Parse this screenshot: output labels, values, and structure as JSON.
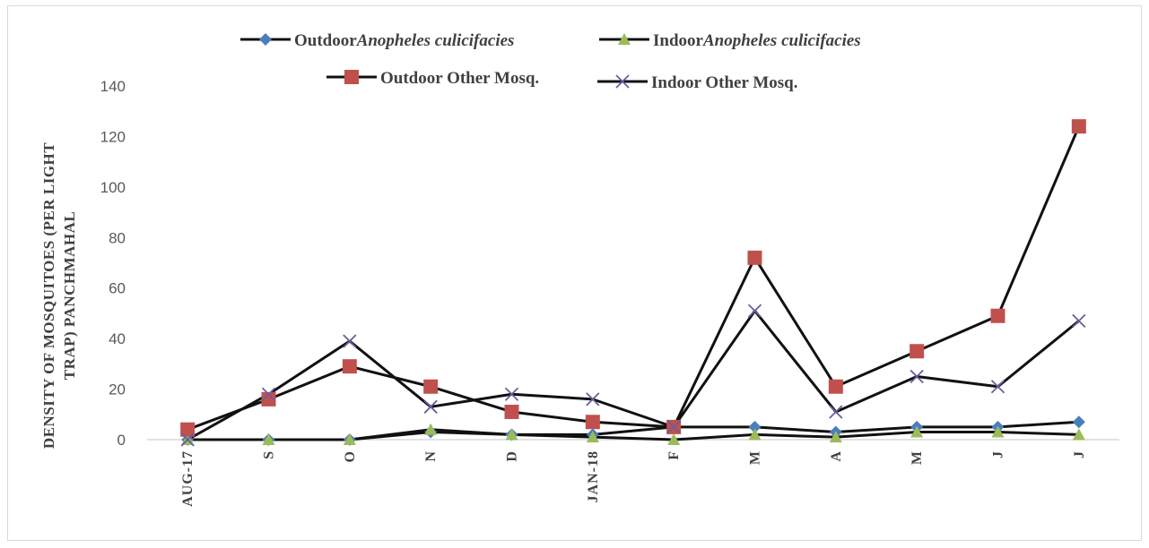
{
  "chart_data": {
    "type": "line",
    "title": "",
    "ylabel_line1": "DENSITY OF MOSQUITOES (PER LIGHT",
    "ylabel_line2": "TRAP) PANCHMAHAL",
    "xlabel": "",
    "ylim": [
      0,
      140
    ],
    "yticks": [
      0,
      20,
      40,
      60,
      80,
      100,
      120,
      140
    ],
    "categories": [
      "AUG-17",
      "S",
      "O",
      "N",
      "D",
      "JAN-18",
      "F",
      "M",
      "A",
      "M",
      "J",
      "J"
    ],
    "legend_position": "top",
    "grid": false,
    "series": [
      {
        "name": "Outdoor Anopheles culicifacies",
        "legend_plain": "Outdoor",
        "legend_italic": "Anopheles culicifacies",
        "marker": "diamond",
        "color": "#4a7ebb",
        "values": [
          0,
          0,
          0,
          3,
          2,
          2,
          5,
          5,
          3,
          5,
          5,
          7
        ]
      },
      {
        "name": "Indoor Anopheles culicifacies",
        "legend_plain": "Indoor",
        "legend_italic": "Anopheles culicifacies",
        "marker": "triangle",
        "color": "#9bbb59",
        "values": [
          0,
          0,
          0,
          4,
          2,
          1,
          0,
          2,
          1,
          3,
          3,
          2
        ]
      },
      {
        "name": "Outdoor Other Mosq.",
        "legend_plain": "Outdoor  Other Mosq.",
        "legend_italic": "",
        "marker": "square",
        "color": "#c0504d",
        "values": [
          4,
          16,
          29,
          21,
          11,
          7,
          5,
          72,
          21,
          35,
          49,
          124
        ]
      },
      {
        "name": "Indoor Other Mosq.",
        "legend_plain": "Indoor Other Mosq.",
        "legend_italic": "",
        "marker": "x",
        "color": "#6a5d9e",
        "values": [
          0,
          18,
          39,
          13,
          18,
          16,
          5,
          51,
          11,
          25,
          21,
          47
        ]
      }
    ]
  }
}
